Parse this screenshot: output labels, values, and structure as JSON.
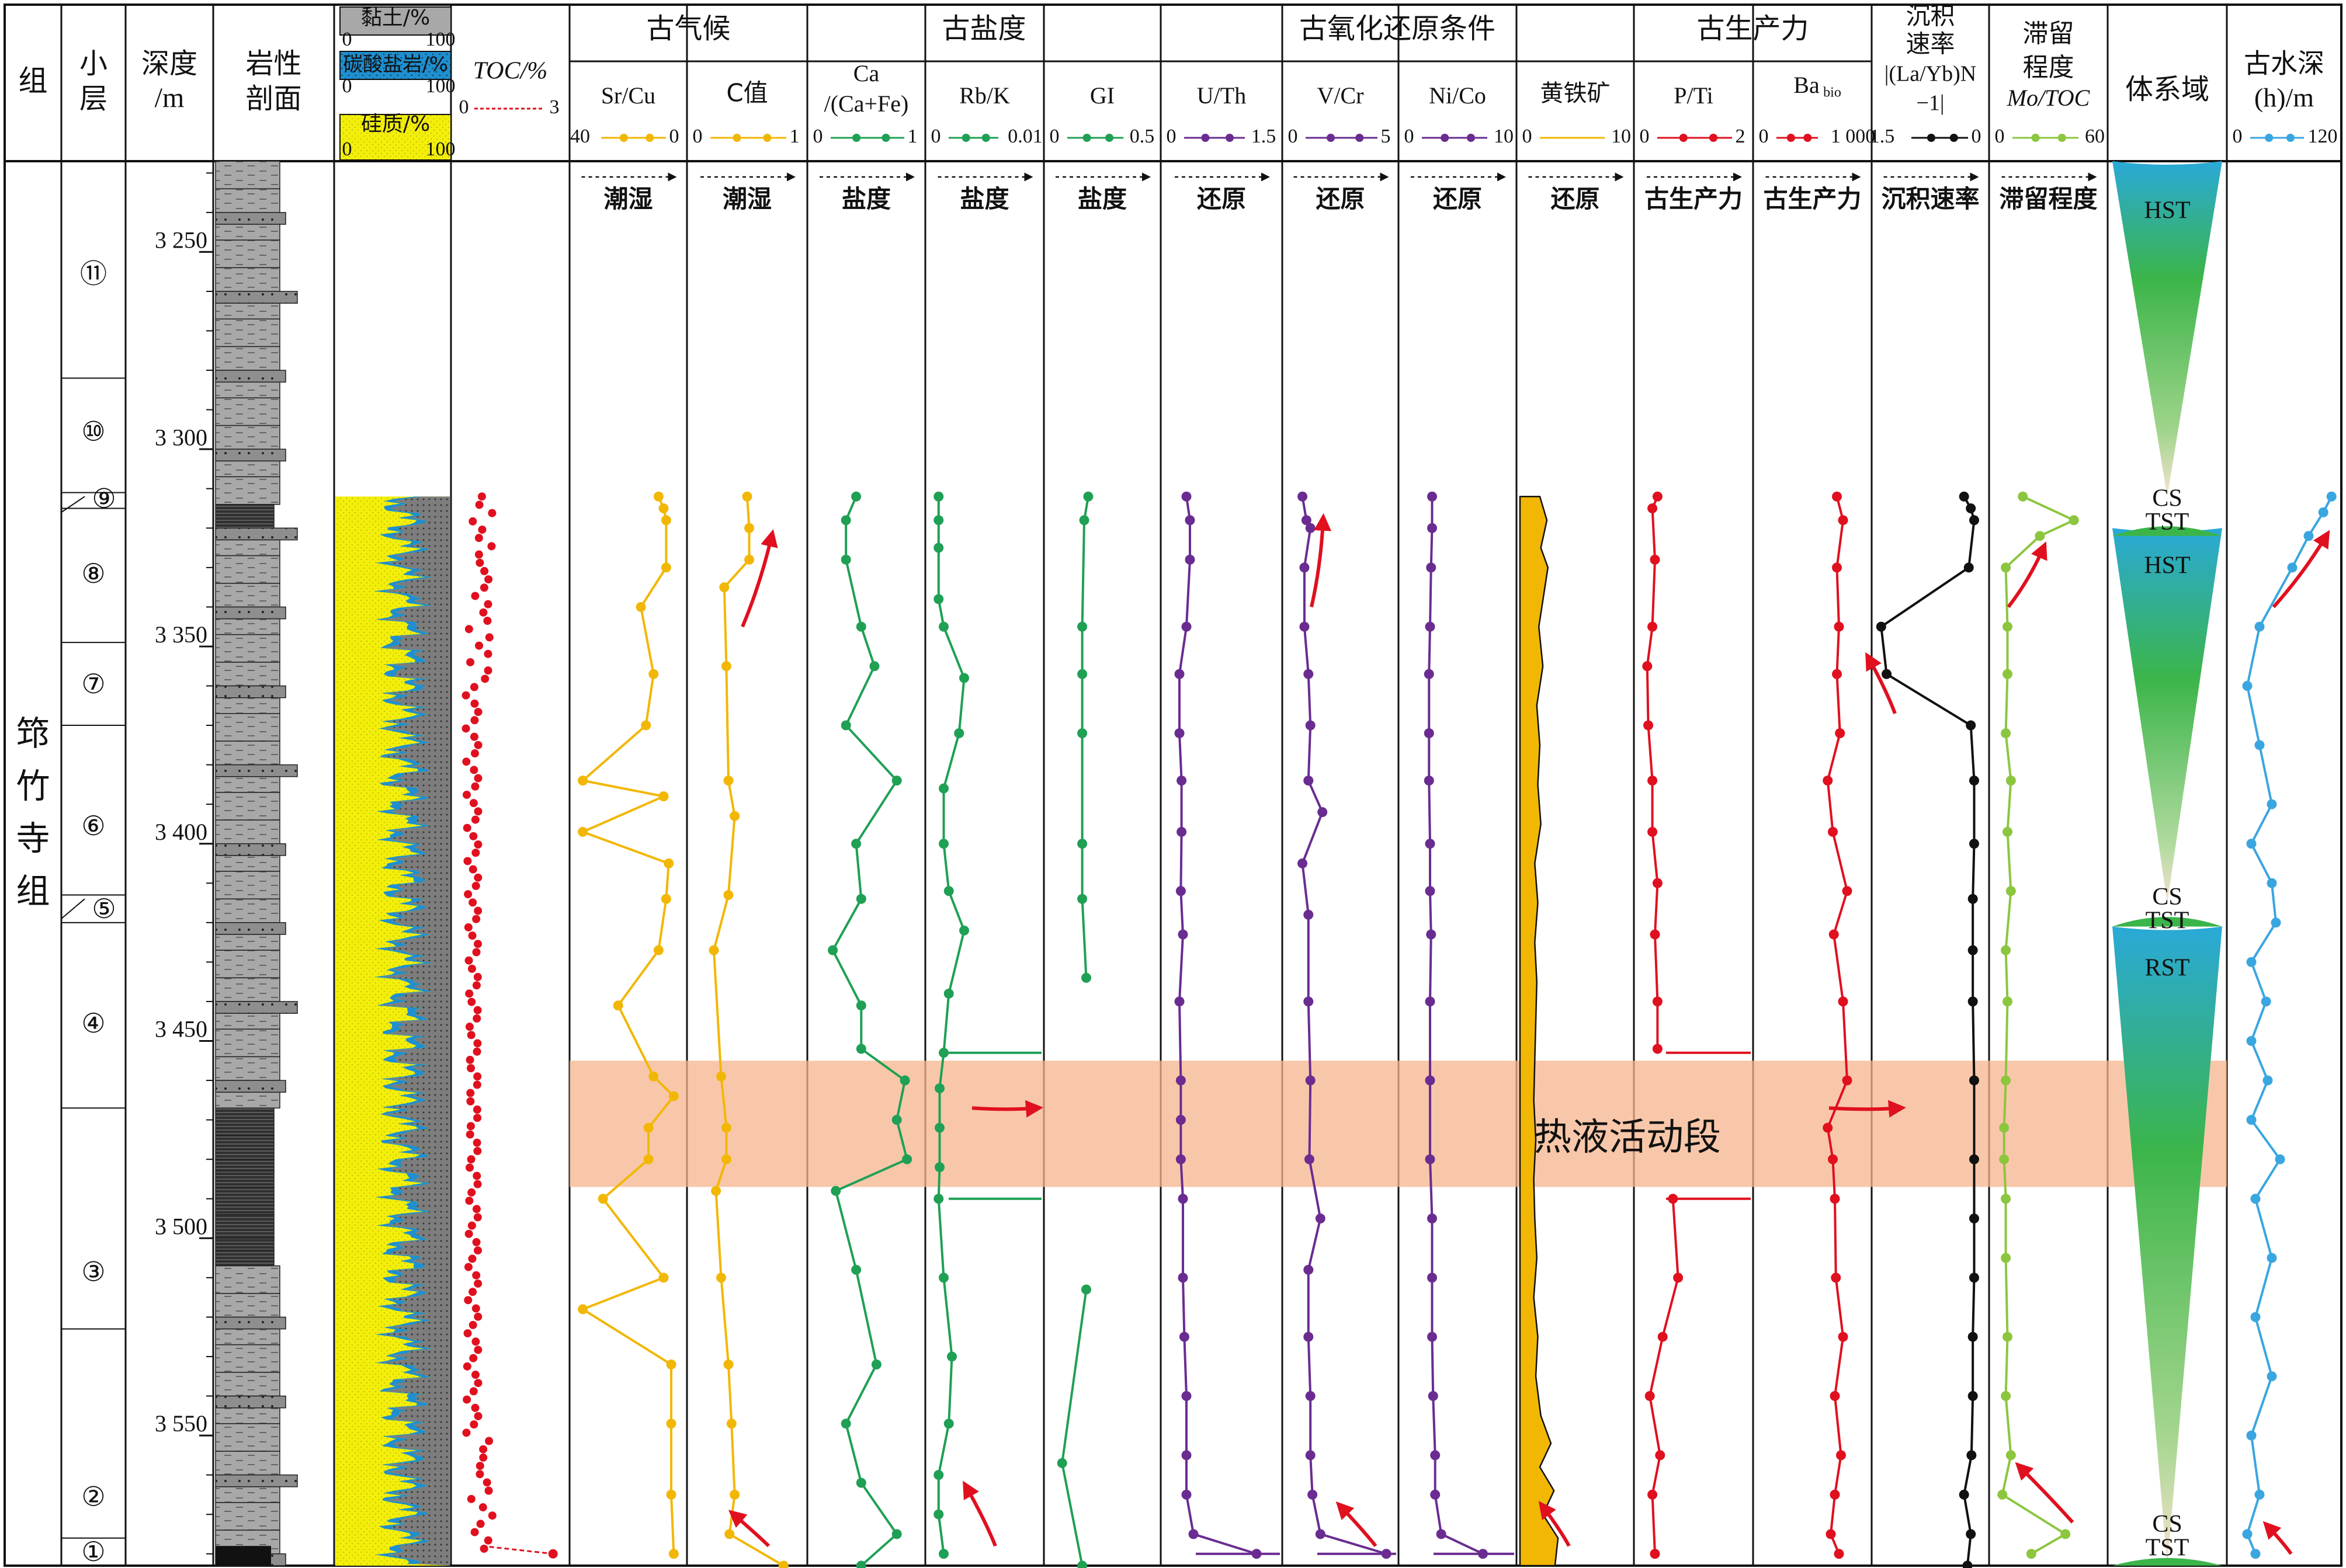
{
  "headers": {
    "group": "组",
    "layer": [
      "小",
      "层"
    ],
    "depth": [
      "深度",
      "/m"
    ],
    "litho": [
      "岩性",
      "剖面"
    ],
    "clay": "黏土/%",
    "carb": "碳酸盐岩/%",
    "sil": "硅质/%",
    "toc": "TOC/%",
    "group_paleoclimate": "古气候",
    "group_paleosalinity": "古盐度",
    "group_redox": "古氧化还原条件",
    "group_productivity": "古生产力",
    "sed_rate": [
      "沉积",
      "速率",
      "|(La/Yb)N",
      "−1|"
    ],
    "retention": [
      "滞留",
      "程度",
      "Mo/TOC"
    ],
    "systems_tract": "体系域",
    "water_depth": [
      "古水深",
      "(h)/m"
    ]
  },
  "columns": [
    {
      "name": "Sr/Cu",
      "range": [
        "40",
        "0"
      ],
      "trend": "潮湿",
      "color": "#f2b705"
    },
    {
      "name": "C值",
      "range": [
        "0",
        "1"
      ],
      "trend": "潮湿",
      "color": "#f2b705"
    },
    {
      "name": "Ca/(Ca+Fe)",
      "range": [
        "0",
        "1"
      ],
      "trend": "盐度",
      "color": "#1fa055"
    },
    {
      "name": "Rb/K",
      "range": [
        "0",
        "0.01"
      ],
      "trend": "盐度",
      "color": "#1fa055"
    },
    {
      "name": "GI",
      "range": [
        "0",
        "0.5"
      ],
      "trend": "盐度",
      "color": "#1fa055"
    },
    {
      "name": "U/Th",
      "range": [
        "0",
        "1.5"
      ],
      "trend": "还原",
      "color": "#6a2c91"
    },
    {
      "name": "V/Cr",
      "range": [
        "0",
        "5"
      ],
      "trend": "还原",
      "color": "#6a2c91"
    },
    {
      "name": "Ni/Co",
      "range": [
        "0",
        "10"
      ],
      "trend": "还原",
      "color": "#6a2c91"
    },
    {
      "name": "黄铁矿",
      "range": [
        "0",
        "10"
      ],
      "trend": "还原",
      "color": "#f2b705"
    },
    {
      "name": "P/Ti",
      "range": [
        "0",
        "2"
      ],
      "trend": "古生产力",
      "color": "#e0101f"
    },
    {
      "name": "Babio",
      "range": [
        "0",
        "1 000"
      ],
      "trend": "古生产力",
      "color": "#e0101f"
    },
    {
      "name": "sed",
      "range": [
        "1.5",
        "0"
      ],
      "trend": "沉积速率",
      "color": "#111111"
    },
    {
      "name": "Mo/TOC",
      "range": [
        "0",
        "60"
      ],
      "trend": "滞留程度",
      "color": "#8cc63f"
    },
    {
      "name": "water",
      "range": [
        "0",
        "120"
      ],
      "trend": "",
      "color": "#3aa6e0"
    }
  ],
  "toc_range": [
    "0",
    "3"
  ],
  "comp_range": [
    "0",
    "100"
  ],
  "group_name": "筇竹寺组",
  "layers": [
    "⑪",
    "⑩",
    "⑨",
    "⑧",
    "⑦",
    "⑥",
    "⑤",
    "④",
    "③",
    "②",
    "①"
  ],
  "depth_ticks": [
    "3 250",
    "3 300",
    "3 350",
    "3 400",
    "3 450",
    "3 500",
    "3 550"
  ],
  "tracts": [
    "HST",
    "CS",
    "TST",
    "HST",
    "CS",
    "TST",
    "RST",
    "CS",
    "TST"
  ],
  "hydro_label": "热液活动段",
  "chart_data": {
    "type": "line",
    "y_label": "深度/m",
    "y_range": [
      3227,
      3583
    ],
    "hydrothermal_interval": [
      3455,
      3487
    ],
    "series": [
      {
        "name": "Sr/Cu",
        "range": [
          40,
          0
        ],
        "depth": [
          3312,
          3315,
          3318,
          3330,
          3340,
          3357,
          3370,
          3384,
          3388,
          3397,
          3405,
          3414,
          3427,
          3441,
          3459,
          3464,
          3472,
          3480,
          3490,
          3510,
          3518,
          3532,
          3547,
          3565,
          3580
        ],
        "values": [
          8,
          6,
          5,
          5,
          15,
          10,
          13,
          38,
          6,
          38,
          4,
          5,
          8,
          24,
          10,
          2,
          12,
          12,
          30,
          6,
          38,
          3,
          3,
          3,
          2
        ]
      },
      {
        "name": "C值",
        "range": [
          0,
          1
        ],
        "depth": [
          3312,
          3320,
          3328,
          3335,
          3355,
          3384,
          3393,
          3413,
          3427,
          3459,
          3472,
          3480,
          3488,
          3510,
          3532,
          3547,
          3565,
          3575,
          3583
        ],
        "values": [
          0.5,
          0.52,
          0.52,
          0.28,
          0.3,
          0.32,
          0.38,
          0.32,
          0.18,
          0.25,
          0.3,
          0.3,
          0.2,
          0.25,
          0.32,
          0.35,
          0.38,
          0.33,
          0.85
        ]
      },
      {
        "name": "Ca/(Ca+Fe)",
        "range": [
          0,
          1
        ],
        "depth": [
          3312,
          3318,
          3328,
          3345,
          3355,
          3370,
          3384,
          3400,
          3414,
          3427,
          3441,
          3452,
          3460,
          3470,
          3480,
          3488,
          3508,
          3532,
          3547,
          3562,
          3575,
          3583
        ],
        "values": [
          0.4,
          0.3,
          0.3,
          0.45,
          0.58,
          0.3,
          0.8,
          0.4,
          0.45,
          0.17,
          0.45,
          0.45,
          0.88,
          0.8,
          0.9,
          0.2,
          0.4,
          0.6,
          0.3,
          0.45,
          0.8,
          0.45
        ]
      },
      {
        "name": "Rb/K",
        "range": [
          0,
          0.01
        ],
        "depth": [
          3312,
          3318,
          3325,
          3338,
          3345,
          3358,
          3372,
          3386,
          3400,
          3412,
          3422,
          3438,
          3453,
          3462,
          3472,
          3482,
          3490,
          3510,
          3530,
          3547,
          3560,
          3570,
          3580
        ],
        "values": [
          0.0005,
          0.0005,
          0.0005,
          0.0005,
          0.001,
          0.003,
          0.0025,
          0.001,
          0.001,
          0.0015,
          0.003,
          0.0015,
          0.001,
          0.0006,
          0.0006,
          0.0006,
          0.0005,
          0.001,
          0.0018,
          0.0015,
          0.0005,
          0.0005,
          0.001
        ]
      },
      {
        "name": "GI",
        "range": [
          0,
          0.5
        ],
        "depth": [
          3312,
          3318,
          3345,
          3357,
          3372,
          3400,
          3414,
          3434
        ],
        "values": [
          0.18,
          0.16,
          0.15,
          0.15,
          0.15,
          0.15,
          0.15,
          0.17
        ]
      },
      {
        "name": "GI-lower",
        "range": [
          0,
          0.5
        ],
        "depth": [
          3513,
          3557,
          3583
        ],
        "values": [
          0.17,
          0.05,
          0.15
        ]
      },
      {
        "name": "U/Th",
        "range": [
          0,
          1.5
        ],
        "depth": [
          3312,
          3318,
          3328,
          3345,
          3357,
          3372,
          3384,
          3397,
          3412,
          3423,
          3440,
          3460,
          3470,
          3480,
          3490,
          3510,
          3525,
          3540,
          3555,
          3565,
          3575,
          3580
        ],
        "values": [
          0.25,
          0.3,
          0.3,
          0.25,
          0.15,
          0.15,
          0.18,
          0.18,
          0.17,
          0.2,
          0.15,
          0.17,
          0.17,
          0.17,
          0.2,
          0.2,
          0.22,
          0.25,
          0.25,
          0.25,
          0.35,
          1.25
        ]
      },
      {
        "name": "V/Cr",
        "range": [
          0,
          5
        ],
        "depth": [
          3312,
          3318,
          3320,
          3330,
          3345,
          3357,
          3370,
          3384,
          3392,
          3405,
          3418,
          3440,
          3460,
          3480,
          3495,
          3508,
          3525,
          3540,
          3555,
          3565,
          3575,
          3580
        ],
        "values": [
          0.6,
          0.8,
          1,
          0.7,
          0.7,
          0.9,
          1.0,
          0.9,
          1.6,
          0.6,
          0.9,
          0.9,
          1.0,
          0.95,
          1.5,
          0.9,
          0.9,
          1.0,
          1.0,
          1.1,
          1.5,
          4.8
        ]
      },
      {
        "name": "Ni/Co",
        "range": [
          0,
          10
        ],
        "depth": [
          3312,
          3320,
          3330,
          3345,
          3357,
          3372,
          3384,
          3400,
          3412,
          3423,
          3440,
          3460,
          3480,
          3495,
          3510,
          3525,
          3540,
          3555,
          3565,
          3575,
          3580
        ],
        "values": [
          2.5,
          2.5,
          2.4,
          2.3,
          2.2,
          2.2,
          2.2,
          2.3,
          2.3,
          2.4,
          2.3,
          2.3,
          2.3,
          2.5,
          2.5,
          2.5,
          2.6,
          2.8,
          2.8,
          3.4,
          7.5
        ]
      },
      {
        "name": "黄铁矿",
        "range": [
          0,
          10
        ],
        "depth": [
          3312,
          3318,
          3325,
          3330,
          3345,
          3355,
          3365,
          3375,
          3385,
          3395,
          3405,
          3415,
          3425,
          3435,
          3445,
          3455,
          3465,
          3475,
          3485,
          3495,
          3505,
          3515,
          3525,
          3535,
          3545,
          3552,
          3558,
          3564,
          3570,
          3576,
          3583
        ],
        "values": [
          1.5,
          2.2,
          1.6,
          2.3,
          1.4,
          1.8,
          1.2,
          1.5,
          1.3,
          1.6,
          1.0,
          1.3,
          1.0,
          1.2,
          1.1,
          1.0,
          0.9,
          1.1,
          0.9,
          1.0,
          1.2,
          0.9,
          1.3,
          1.1,
          1.6,
          2.6,
          1.5,
          2.9,
          1.8,
          3.3,
          3.0
        ]
      },
      {
        "name": "P/Ti",
        "range": [
          0,
          2
        ],
        "depth": [
          3312,
          3315,
          3328,
          3345,
          3355,
          3370,
          3384,
          3397,
          3410,
          3423,
          3440,
          3452
        ],
        "values": [
          0.3,
          0.2,
          0.25,
          0.2,
          0.1,
          0.12,
          0.2,
          0.2,
          0.3,
          0.25,
          0.3,
          0.3
        ]
      },
      {
        "name": "P/Ti-lower",
        "range": [
          0,
          2
        ],
        "depth": [
          3490,
          3510,
          3525,
          3540,
          3555,
          3565,
          3580
        ],
        "values": [
          0.6,
          0.7,
          0.4,
          0.15,
          0.35,
          0.2,
          0.25
        ]
      },
      {
        "name": "Babio",
        "range": [
          0,
          1000
        ],
        "depth": [
          3312,
          3318,
          3330,
          3345,
          3357,
          3372,
          3384,
          3397,
          3412,
          3423,
          3440,
          3460,
          3472,
          3480,
          3490,
          3510,
          3525,
          3540,
          3555,
          3565,
          3575,
          3580
        ],
        "values": [
          740,
          800,
          740,
          760,
          740,
          770,
          650,
          700,
          840,
          710,
          800,
          840,
          650,
          700,
          720,
          730,
          800,
          720,
          780,
          720,
          680,
          760
        ]
      },
      {
        "name": "沉积速率",
        "range": [
          1.5,
          0
        ],
        "depth": [
          3312,
          3315,
          3318,
          3330,
          3345,
          3357,
          3370,
          3384,
          3400,
          3414,
          3427,
          3440,
          3460,
          3480,
          3495,
          3510,
          3525,
          3540,
          3555,
          3565,
          3575,
          3583
        ],
        "values": [
          0.25,
          0.15,
          0.1,
          0.18,
          1.48,
          1.4,
          0.15,
          0.1,
          0.1,
          0.12,
          0.12,
          0.12,
          0.1,
          0.1,
          0.1,
          0.1,
          0.12,
          0.12,
          0.14,
          0.25,
          0.15,
          0.2
        ]
      },
      {
        "name": "Mo/TOC",
        "range": [
          0,
          60
        ],
        "depth": [
          3312,
          3318,
          3322,
          3330,
          3345,
          3357,
          3372,
          3384,
          3397,
          3412,
          3427,
          3440,
          3460,
          3472,
          3480,
          3490,
          3505,
          3525,
          3540,
          3555,
          3565,
          3575,
          3580
        ],
        "values": [
          15,
          45,
          25,
          5,
          6,
          6,
          5,
          8,
          6,
          8,
          5,
          6,
          5,
          4,
          4,
          5,
          5,
          6,
          5,
          8,
          3,
          40,
          20
        ]
      },
      {
        "name": "古水深",
        "range": [
          0,
          120
        ],
        "depth": [
          3312,
          3316,
          3322,
          3330,
          3345,
          3360,
          3375,
          3390,
          3400,
          3410,
          3420,
          3430,
          3440,
          3450,
          3460,
          3470,
          3480,
          3490,
          3505,
          3520,
          3535,
          3550,
          3565,
          3575,
          3580
        ],
        "values": [
          118,
          108,
          90,
          70,
          30,
          15,
          30,
          45,
          20,
          45,
          50,
          20,
          38,
          20,
          40,
          20,
          55,
          25,
          45,
          25,
          45,
          20,
          30,
          15,
          25
        ]
      },
      {
        "name": "TOC",
        "range": [
          0,
          3
        ],
        "depth": [
          3312,
          3318,
          3323,
          3328,
          3335,
          3342,
          3348,
          3355,
          3365,
          3375,
          3390,
          3410,
          3430,
          3450,
          3470,
          3490,
          3510,
          3530,
          3550,
          3565,
          3575,
          3580
        ],
        "values": [
          0.3,
          0.5,
          0.7,
          0.8,
          1.0,
          0.8,
          0.5,
          0.3,
          0.6,
          0.2,
          0.3,
          0.3,
          0.2,
          0.2,
          0.2,
          0.2,
          0.2,
          0.2,
          0.4,
          0.6,
          0.7,
          2.7
        ]
      }
    ]
  }
}
